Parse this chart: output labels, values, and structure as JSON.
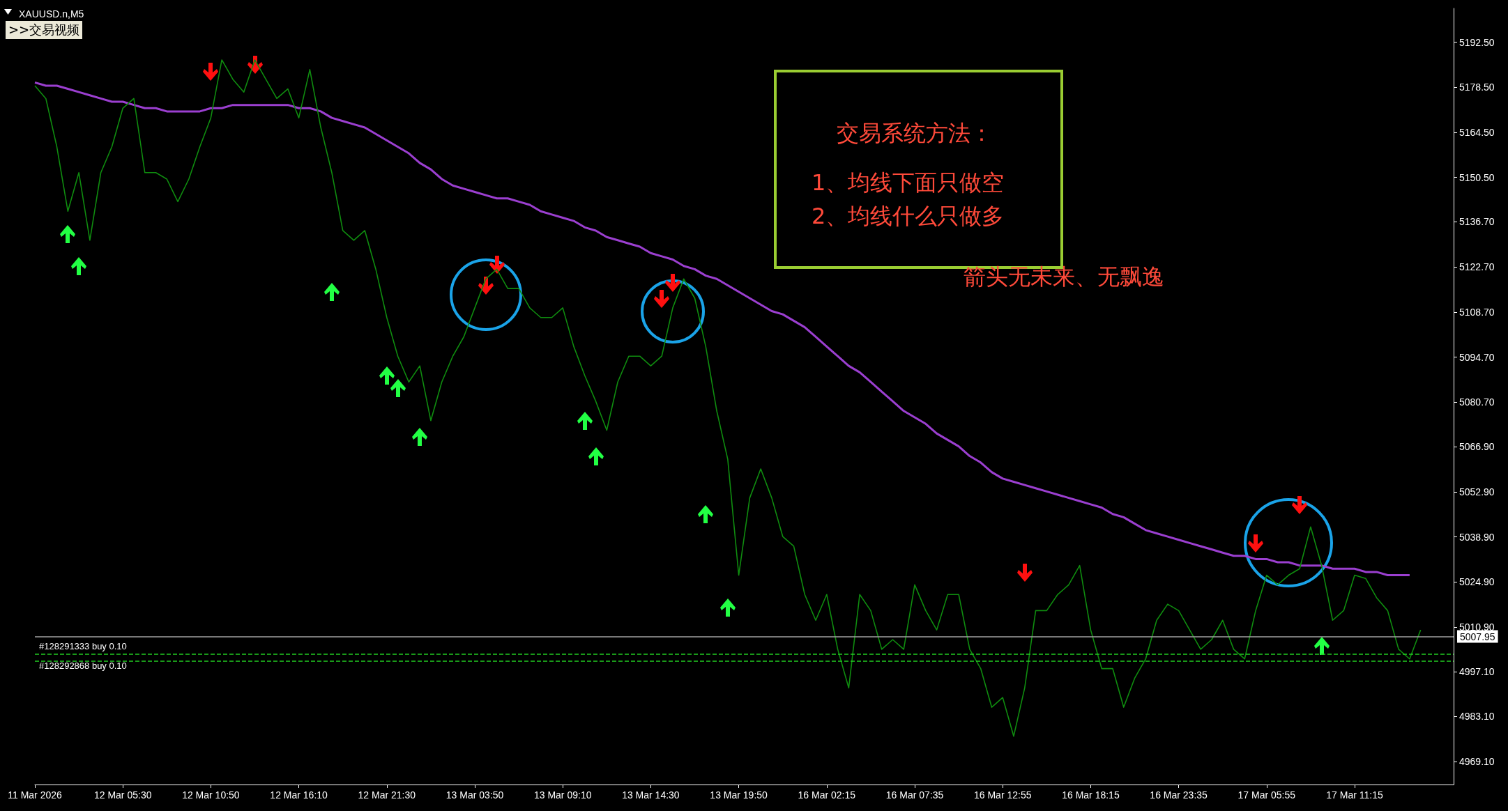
{
  "chart_data": {
    "type": "line",
    "title": "XAUUSD.n,M5",
    "categories": [
      "11 Mar 2026",
      null,
      null,
      null,
      null,
      null,
      null,
      null,
      "12 Mar 05:30",
      null,
      null,
      null,
      null,
      null,
      null,
      null,
      "12 Mar 10:50",
      null,
      null,
      null,
      null,
      null,
      null,
      null,
      "12 Mar 16:10",
      null,
      null,
      null,
      null,
      null,
      null,
      null,
      "12 Mar 21:30",
      null,
      null,
      null,
      null,
      null,
      null,
      null,
      "13 Mar 03:50",
      null,
      null,
      null,
      null,
      null,
      null,
      null,
      "13 Mar 09:10",
      null,
      null,
      null,
      null,
      null,
      null,
      null,
      "13 Mar 14:30",
      null,
      null,
      null,
      null,
      null,
      null,
      null,
      "13 Mar 19:50",
      null,
      null,
      null,
      null,
      null,
      null,
      null,
      "16 Mar 02:15",
      null,
      null,
      null,
      null,
      null,
      null,
      null,
      "16 Mar 07:35",
      null,
      null,
      null,
      null,
      null,
      null,
      null,
      "16 Mar 12:55",
      null,
      null,
      null,
      null,
      null,
      null,
      null,
      "16 Mar 18:15",
      null,
      null,
      null,
      null,
      null,
      null,
      null,
      "16 Mar 23:35",
      null,
      null,
      null,
      null,
      null,
      null,
      null,
      "17 Mar 05:55",
      null,
      null,
      null,
      null,
      null,
      null,
      null,
      "17 Mar 11:15",
      null,
      null,
      null,
      null,
      null,
      null,
      null,
      null,
      null
    ],
    "series": [
      {
        "color": "#0f8c0f",
        "values": [
          5179,
          5175,
          5160,
          5140,
          5152,
          5131,
          5152,
          5160,
          5172,
          5175,
          5152,
          5152,
          5150,
          5143,
          5150,
          5160,
          5169,
          5187,
          5181,
          5177,
          5187,
          5181,
          5175,
          5178,
          5169,
          5184,
          5166,
          5152,
          5134,
          5131,
          5134,
          5122,
          5107,
          5095,
          5087,
          5092,
          5075,
          5087,
          5095,
          5101,
          5110,
          5119,
          5122,
          5116,
          5116,
          5110,
          5107,
          5107,
          5110,
          5098,
          5089,
          5081,
          5072,
          5087,
          5095,
          5095,
          5092,
          5095,
          5110,
          5119,
          5113,
          5098,
          5078,
          5063,
          5027,
          5051,
          5060,
          5051,
          5039,
          5036,
          5021,
          5013,
          5021,
          5004,
          4992,
          5021,
          5016,
          5004,
          5007,
          5004,
          5024,
          5016,
          5010,
          5021,
          5021,
          5004,
          4998,
          4986,
          4989,
          4977,
          4992,
          5016,
          5016,
          5021,
          5024,
          5030,
          5010,
          4998,
          4998,
          4986,
          4995,
          5001,
          5013,
          5018,
          5016,
          5010,
          5004,
          5007,
          5013,
          5004,
          5001,
          5016,
          5027,
          5024,
          5027,
          5029,
          5042,
          5030,
          5013,
          5016,
          5027,
          5026,
          5020,
          5016,
          5004,
          5001,
          5010,
          null,
          null,
          null
        ]
      },
      {
        "color": "#9b3fd0",
        "values": [
          5180,
          5179,
          5179,
          5178,
          5177,
          5176,
          5175,
          5174,
          5174,
          5173,
          5172,
          5172,
          5171,
          5171,
          5171,
          5171,
          5172,
          5172,
          5173,
          5173,
          5173,
          5173,
          5173,
          5173,
          5172,
          5172,
          5171,
          5169,
          5168,
          5167,
          5166,
          5164,
          5162,
          5160,
          5158,
          5155,
          5153,
          5150,
          5148,
          5147,
          5146,
          5145,
          5144,
          5144,
          5143,
          5142,
          5140,
          5139,
          5138,
          5137,
          5135,
          5134,
          5132,
          5131,
          5130,
          5129,
          5127,
          5126,
          5125,
          5123,
          5122,
          5120,
          5119,
          5117,
          5115,
          5113,
          5111,
          5109,
          5108,
          5106,
          5104,
          5101,
          5098,
          5095,
          5092,
          5090,
          5087,
          5084,
          5081,
          5078,
          5076,
          5074,
          5071,
          5069,
          5067,
          5064,
          5062,
          5059,
          5057,
          5056,
          5055,
          5054,
          5053,
          5052,
          5051,
          5050,
          5049,
          5048,
          5046,
          5045,
          5043,
          5041,
          5040,
          5039,
          5038,
          5037,
          5036,
          5035,
          5034,
          5033,
          5033,
          5032,
          5032,
          5031,
          5031,
          5030,
          5030,
          5030,
          5029,
          5029,
          5029,
          5028,
          5028,
          5027,
          5027,
          5027,
          null,
          null,
          null,
          null
        ]
      }
    ],
    "ylim": [
      4962,
      5203
    ],
    "yticks": [
      {
        "value": 5192.5,
        "label": "5192.50"
      },
      {
        "value": 5178.5,
        "label": "5178.50"
      },
      {
        "value": 5164.5,
        "label": "5164.50"
      },
      {
        "value": 5150.5,
        "label": "5150.50"
      },
      {
        "value": 5136.7,
        "label": "5136.70"
      },
      {
        "value": 5122.7,
        "label": "5122.70"
      },
      {
        "value": 5108.7,
        "label": "5108.70"
      },
      {
        "value": 5094.7,
        "label": "5094.70"
      },
      {
        "value": 5080.7,
        "label": "5080.70"
      },
      {
        "value": 5066.9,
        "label": "5066.90"
      },
      {
        "value": 5052.9,
        "label": "5052.90"
      },
      {
        "value": 5038.9,
        "label": "5038.90"
      },
      {
        "value": 5024.9,
        "label": "5024.90"
      },
      {
        "value": 5010.9,
        "label": "5010.90"
      },
      {
        "value": 4997.1,
        "label": "4997.10"
      },
      {
        "value": 4983.1,
        "label": "4983.10"
      },
      {
        "value": 4969.1,
        "label": "4969.10"
      }
    ],
    "grid": false,
    "marker": "none",
    "line_style": "solid",
    "ref_lines": [
      {
        "axis": "y",
        "value": 5007.95,
        "label": "5007.95",
        "color": "#a0a0a0",
        "line_style": "solid"
      },
      {
        "axis": "y",
        "value": 5002.6,
        "label": "#128291333 buy 0.10",
        "color": "#22cc22",
        "line_style": "dashed"
      },
      {
        "axis": "y",
        "value": 5000.4,
        "label": "#128292868 buy 0.10",
        "color": "#22cc22",
        "line_style": "dashed"
      }
    ],
    "annotations": [
      ">>交易视频",
      "交易系统方法：",
      "1、均线下面只做空",
      "2、均线什么只做多",
      "箭头无未来、无飘逸"
    ]
  }
}
